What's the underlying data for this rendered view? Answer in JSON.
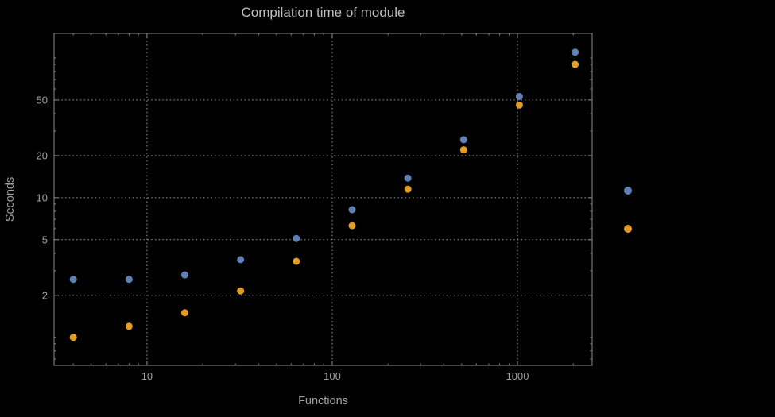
{
  "title": "Compilation time of module",
  "xlabel": "Functions",
  "ylabel": "Seconds",
  "colors": {
    "background": "#000000",
    "frame": "#8a8a8a",
    "grid": "#9a9a9a",
    "text": "#a0a0a0",
    "title": "#bdbdbd",
    "series1": "#5e81b5",
    "series2": "#e19c24"
  },
  "chart_data": {
    "type": "scatter",
    "title": "Compilation time of module",
    "xlabel": "Functions",
    "ylabel": "Seconds",
    "xscale": "log",
    "yscale": "log",
    "grid": "dotted",
    "xlim": [
      3.15,
      2530
    ],
    "ylim": [
      0.63,
      150
    ],
    "xticks": [
      10,
      100,
      1000
    ],
    "yticks": [
      2,
      5,
      10,
      20,
      50
    ],
    "x": [
      4,
      8,
      16,
      32,
      64,
      128,
      256,
      512,
      1024,
      2048
    ],
    "series": [
      {
        "name": "blue",
        "color": "#5e81b5",
        "values": [
          2.6,
          2.6,
          2.8,
          3.6,
          5.1,
          8.2,
          13.8,
          26,
          53,
          110
        ]
      },
      {
        "name": "orange",
        "color": "#e19c24",
        "values": [
          1.0,
          1.2,
          1.5,
          2.15,
          3.5,
          6.3,
          11.5,
          22,
          46,
          90
        ]
      }
    ],
    "legend": {
      "position": "right-of-plot",
      "markers": [
        {
          "color": "#5e81b5",
          "label": ""
        },
        {
          "color": "#e19c24",
          "label": ""
        }
      ]
    },
    "marker_size_px": 9
  }
}
